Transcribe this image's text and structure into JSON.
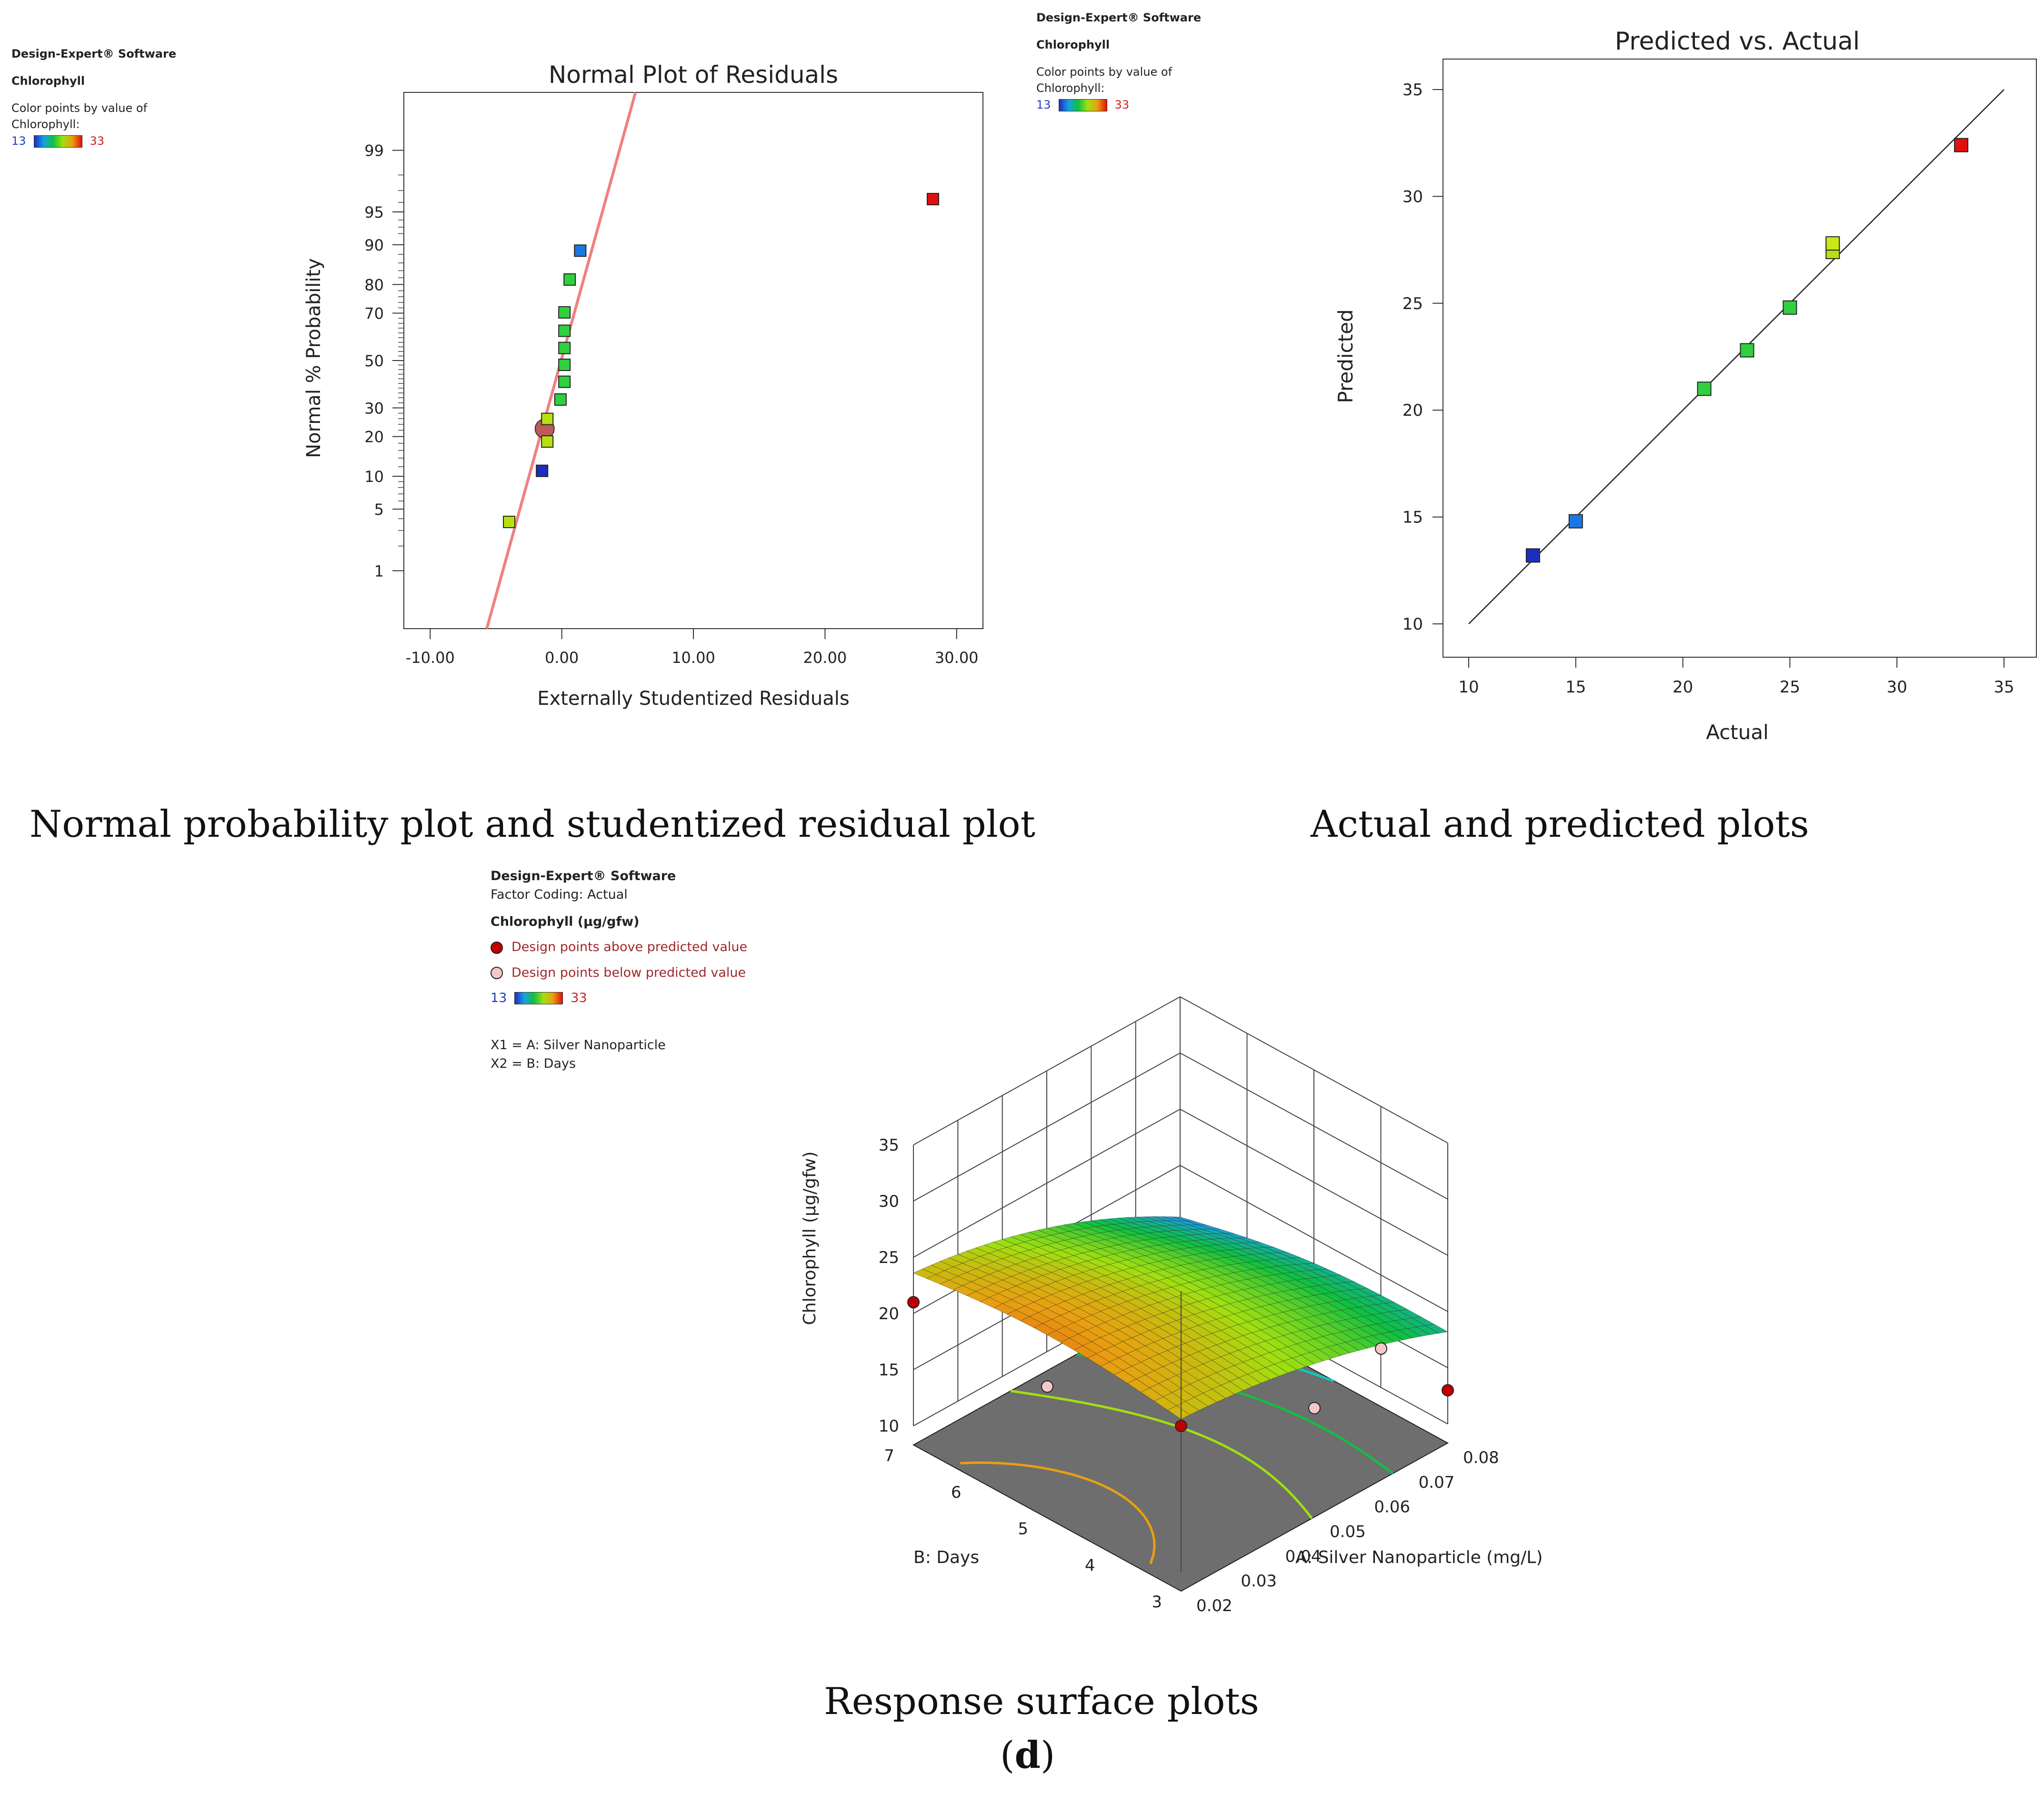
{
  "panels": {
    "normal": {
      "software": "Design-Expert® Software",
      "response": "Chlorophyll",
      "color_note_1": "Color points by value of",
      "color_note_2": "Chlorophyll:",
      "scale_low": "13",
      "scale_high": "33",
      "caption": "Normal probability plot and studentized residual plot"
    },
    "predicted": {
      "software": "Design-Expert® Software",
      "response": "Chlorophyll",
      "color_note_1": "Color points by value of",
      "color_note_2": "Chlorophyll:",
      "scale_low": "13",
      "scale_high": "33",
      "caption": "Actual and predicted plots"
    },
    "surface": {
      "software": "Design-Expert® Software",
      "factor_coding": "Factor Coding: Actual",
      "response": "Chlorophyll (µg/gfw)",
      "above": "Design points above predicted value",
      "below": "Design points below predicted value",
      "scale_low": "13",
      "scale_high": "33",
      "x1": "X1 = A: Silver Nanoparticle",
      "x2": "X2 = B: Days",
      "caption": "Response surface plots"
    }
  },
  "figure_label_open": "(",
  "figure_label_letter": "d",
  "figure_label_close": ")",
  "colors": {
    "low": "#1a2fc0",
    "mid": "#10c040",
    "high": "#e01010",
    "fit_line": "#f08080",
    "above_point": "#c00000",
    "below_point": "#f4c8c8",
    "floor": "#6e6e6e"
  },
  "chart_data": [
    {
      "type": "scatter",
      "title": "Normal Plot of Residuals",
      "xlabel": "Externally Studentized Residuals",
      "ylabel": "Normal % Probability",
      "x_ticks": [
        "-10.00",
        "0.00",
        "10.00",
        "20.00",
        "30.00"
      ],
      "xlim": [
        -12,
        32
      ],
      "y_ticks": [
        "1",
        "5",
        "10",
        "20",
        "30",
        "50",
        "70",
        "80",
        "90",
        "95",
        "99"
      ],
      "y_tick_values": [
        1,
        5,
        10,
        20,
        30,
        50,
        70,
        80,
        90,
        95,
        99
      ],
      "ylim_probability": [
        0.15,
        99.85
      ],
      "fit_line": {
        "x": [
          -5.7,
          5.6
        ],
        "p": [
          0.15,
          99.85
        ]
      },
      "points": [
        {
          "x": -4.0,
          "p": 3.7,
          "c": "#b8e010"
        },
        {
          "x": -1.5,
          "p": 11.1,
          "c": "#1a2fc0"
        },
        {
          "x": -1.1,
          "p": 18.5,
          "c": "#b8e010"
        },
        {
          "x": -1.1,
          "p": 25.9,
          "c": "#b8e010"
        },
        {
          "x": -0.1,
          "p": 33.3,
          "c": "#30d040"
        },
        {
          "x": 0.2,
          "p": 40.7,
          "c": "#30d040"
        },
        {
          "x": 0.2,
          "p": 48.1,
          "c": "#30d040"
        },
        {
          "x": 0.2,
          "p": 55.5,
          "c": "#30d040"
        },
        {
          "x": 0.2,
          "p": 62.9,
          "c": "#30d040"
        },
        {
          "x": 0.2,
          "p": 70.3,
          "c": "#30d040"
        },
        {
          "x": 0.6,
          "p": 81.5,
          "c": "#30d040"
        },
        {
          "x": 1.4,
          "p": 88.8,
          "c": "#1c78e0"
        },
        {
          "x": 28.2,
          "p": 96.3,
          "c": "#e01010"
        }
      ],
      "highlight_point": {
        "x": -1.3,
        "p": 22.5
      }
    },
    {
      "type": "scatter",
      "title": "Predicted vs. Actual",
      "xlabel": "Actual",
      "ylabel": "Predicted",
      "x_ticks": [
        "10",
        "15",
        "20",
        "25",
        "30",
        "35"
      ],
      "y_ticks": [
        "10",
        "15",
        "20",
        "25",
        "30",
        "35"
      ],
      "xlim": [
        10,
        35
      ],
      "ylim": [
        10,
        35
      ],
      "points": [
        {
          "x": 13,
          "y": 13.2,
          "c": "#1a2fc0"
        },
        {
          "x": 15,
          "y": 14.8,
          "c": "#1c78e0"
        },
        {
          "x": 21,
          "y": 21.0,
          "c": "#30d040"
        },
        {
          "x": 23,
          "y": 22.8,
          "c": "#30d040"
        },
        {
          "x": 25,
          "y": 24.8,
          "c": "#30d040"
        },
        {
          "x": 27,
          "y": 27.4,
          "c": "#b8e010"
        },
        {
          "x": 27,
          "y": 27.8,
          "c": "#c8e818"
        },
        {
          "x": 33,
          "y": 32.4,
          "c": "#e01010"
        }
      ]
    },
    {
      "type": "surface",
      "xlabel": "A: Silver Nanoparticle (mg/L)",
      "ylabel": "B: Days",
      "zlabel": "Chlorophyll (µg/gfw)",
      "x_ticks": [
        "0.02",
        "0.03",
        "0.04",
        "0.05",
        "0.06",
        "0.07",
        "0.08"
      ],
      "y_ticks": [
        "3",
        "4",
        "5",
        "6",
        "7"
      ],
      "z_ticks": [
        "10",
        "15",
        "20",
        "25",
        "30",
        "35"
      ],
      "xlim": [
        0.02,
        0.08
      ],
      "ylim": [
        3,
        7
      ],
      "zlim": [
        10,
        35
      ],
      "design_points": [
        {
          "x": 0.02,
          "y": 7,
          "z": 21.0,
          "type": "above"
        },
        {
          "x": 0.02,
          "y": 3,
          "z": 23.0,
          "type": "above"
        },
        {
          "x": 0.08,
          "y": 3,
          "z": 13.0,
          "type": "above"
        },
        {
          "x": 0.02,
          "y": 5,
          "z": 20.0,
          "type": "below"
        },
        {
          "x": 0.05,
          "y": 3,
          "z": 18.0,
          "type": "below"
        },
        {
          "x": 0.065,
          "y": 3,
          "z": 20.0,
          "type": "below"
        }
      ],
      "contours": [
        {
          "level": 16,
          "color": "#1c78e0"
        },
        {
          "level": 18,
          "color": "#10c8c0"
        },
        {
          "level": 20,
          "color": "#10c040"
        },
        {
          "level": 22,
          "color": "#a0e010"
        },
        {
          "level": 24,
          "color": "#e8a010"
        }
      ]
    }
  ]
}
